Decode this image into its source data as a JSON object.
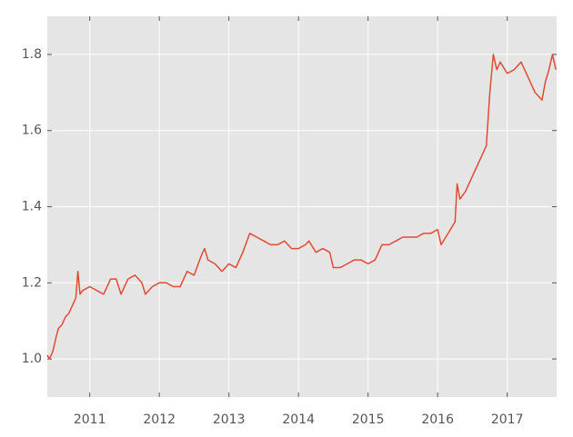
{
  "chart_data": {
    "type": "line",
    "x": [
      2010.39,
      2010.42,
      2010.47,
      2010.52,
      2010.55,
      2010.6,
      2010.65,
      2010.7,
      2010.75,
      2010.8,
      2010.83,
      2010.86,
      2010.9,
      2011.0,
      2011.1,
      2011.2,
      2011.3,
      2011.38,
      2011.45,
      2011.55,
      2011.65,
      2011.75,
      2011.8,
      2011.9,
      2012.0,
      2012.1,
      2012.2,
      2012.3,
      2012.4,
      2012.5,
      2012.6,
      2012.65,
      2012.7,
      2012.8,
      2012.9,
      2013.0,
      2013.1,
      2013.2,
      2013.3,
      2013.4,
      2013.5,
      2013.6,
      2013.7,
      2013.8,
      2013.9,
      2014.0,
      2014.1,
      2014.15,
      2014.25,
      2014.35,
      2014.45,
      2014.5,
      2014.6,
      2014.7,
      2014.8,
      2014.9,
      2015.0,
      2015.1,
      2015.2,
      2015.3,
      2015.4,
      2015.5,
      2015.6,
      2015.7,
      2015.8,
      2015.9,
      2016.0,
      2016.05,
      2016.15,
      2016.25,
      2016.28,
      2016.32,
      2016.4,
      2016.5,
      2016.6,
      2016.7,
      2016.75,
      2016.8,
      2016.85,
      2016.9,
      2017.0,
      2017.1,
      2017.2,
      2017.3,
      2017.4,
      2017.5,
      2017.55,
      2017.6,
      2017.65,
      2017.7
    ],
    "series": [
      {
        "color": "#e24a33",
        "values": [
          1.01,
          1.0,
          1.02,
          1.06,
          1.08,
          1.09,
          1.11,
          1.12,
          1.14,
          1.16,
          1.23,
          1.17,
          1.18,
          1.19,
          1.18,
          1.17,
          1.21,
          1.21,
          1.17,
          1.21,
          1.22,
          1.2,
          1.17,
          1.19,
          1.2,
          1.2,
          1.19,
          1.19,
          1.23,
          1.22,
          1.27,
          1.29,
          1.26,
          1.25,
          1.23,
          1.25,
          1.24,
          1.28,
          1.33,
          1.32,
          1.31,
          1.3,
          1.3,
          1.31,
          1.29,
          1.29,
          1.3,
          1.31,
          1.28,
          1.29,
          1.28,
          1.24,
          1.24,
          1.25,
          1.26,
          1.26,
          1.25,
          1.26,
          1.3,
          1.3,
          1.31,
          1.32,
          1.32,
          1.32,
          1.33,
          1.33,
          1.34,
          1.3,
          1.33,
          1.36,
          1.46,
          1.42,
          1.44,
          1.48,
          1.52,
          1.56,
          1.7,
          1.8,
          1.76,
          1.78,
          1.75,
          1.76,
          1.78,
          1.74,
          1.7,
          1.68,
          1.73,
          1.76,
          1.8,
          1.76
        ]
      }
    ],
    "xlim": [
      2010.39,
      2017.71
    ],
    "xticks": [
      2011,
      2012,
      2013,
      2014,
      2015,
      2016,
      2017
    ],
    "ylim": [
      0.9,
      1.9
    ],
    "yticks": [
      1.0,
      1.2,
      1.4,
      1.6,
      1.8
    ],
    "grid": true
  }
}
